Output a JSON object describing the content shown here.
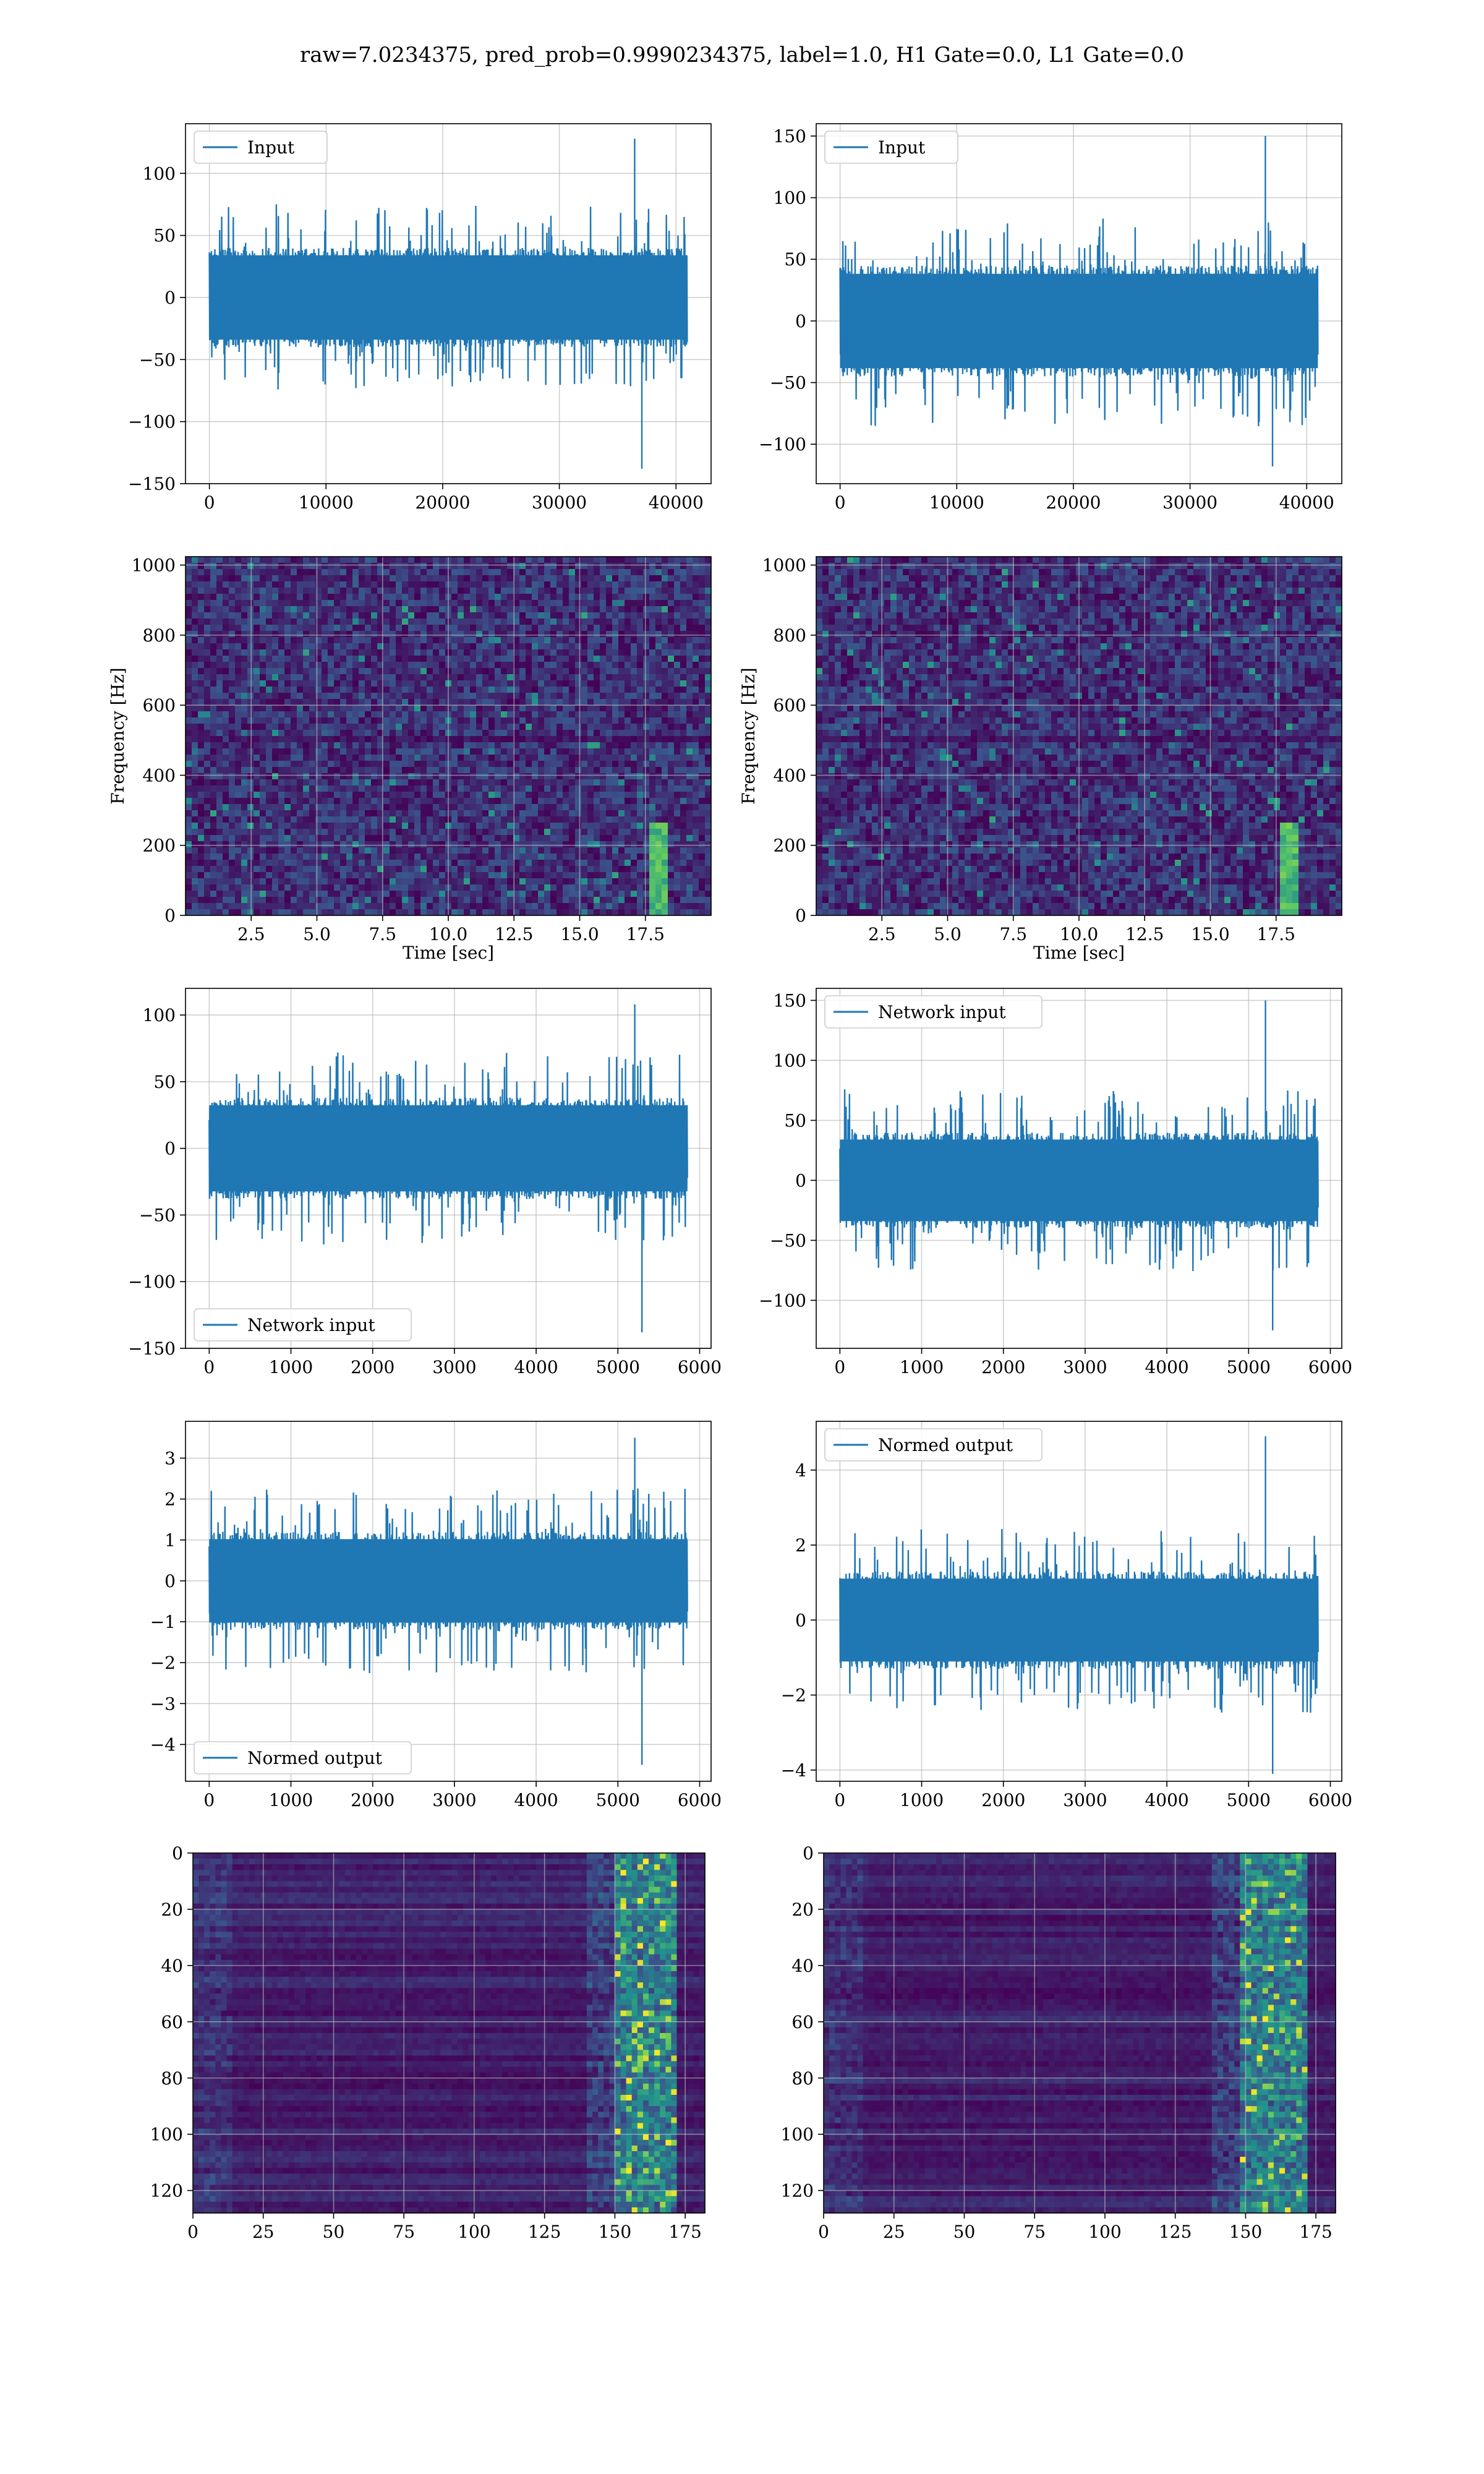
{
  "figure": {
    "title": "raw=7.0234375, pred_prob=0.9990234375, label=1.0, H1 Gate=0.0, L1 Gate=0.0"
  },
  "colors": {
    "line": "#1f77b4",
    "grid": "#b0b0b0",
    "viridis_low": "#440154",
    "viridis_mid": "#21918c",
    "viridis_high": "#fde725"
  },
  "chart_data": [
    {
      "id": "input-left",
      "type": "line",
      "legend": "Input",
      "legend_loc": "upper left",
      "x_range": [
        0,
        40960
      ],
      "xlim": [
        -2048,
        43008
      ],
      "ylim": [
        -150,
        140
      ],
      "xticks": [
        0,
        10000,
        20000,
        30000,
        40000
      ],
      "xtick_labels": [
        "0",
        "10000",
        "20000",
        "30000",
        "40000"
      ],
      "yticks": [
        -150,
        -100,
        -50,
        0,
        50,
        100
      ],
      "ytick_labels": [
        "−150",
        "−100",
        "−50",
        "0",
        "50",
        "100"
      ],
      "envelope": {
        "core": 40,
        "spike_max": 128,
        "spike_min": -138
      },
      "grid": true
    },
    {
      "id": "input-right",
      "type": "line",
      "legend": "Input",
      "legend_loc": "upper left",
      "x_range": [
        0,
        40960
      ],
      "xlim": [
        -2048,
        43008
      ],
      "ylim": [
        -132,
        160
      ],
      "xticks": [
        0,
        10000,
        20000,
        30000,
        40000
      ],
      "xtick_labels": [
        "0",
        "10000",
        "20000",
        "30000",
        "40000"
      ],
      "yticks": [
        -100,
        -50,
        0,
        50,
        100,
        150
      ],
      "ytick_labels": [
        "−100",
        "−50",
        "0",
        "50",
        "100",
        "150"
      ],
      "envelope": {
        "core": 45,
        "spike_max": 150,
        "spike_min": -118
      },
      "grid": true
    },
    {
      "id": "spectrogram-left",
      "type": "heatmap",
      "colormap": "viridis",
      "xlim": [
        0,
        20
      ],
      "ylim": [
        0,
        1024
      ],
      "xticks": [
        2.5,
        5.0,
        7.5,
        10.0,
        12.5,
        15.0,
        17.5
      ],
      "xtick_labels": [
        "2.5",
        "5.0",
        "7.5",
        "10.0",
        "12.5",
        "15.0",
        "17.5"
      ],
      "yticks": [
        0,
        200,
        400,
        600,
        800,
        1000
      ],
      "ytick_labels": [
        "0",
        "200",
        "400",
        "600",
        "800",
        "1000"
      ],
      "xlabel": "Time [sec]",
      "ylabel": "Frequency [Hz]",
      "chirp_time": 17.9,
      "grid": true
    },
    {
      "id": "spectrogram-right",
      "type": "heatmap",
      "colormap": "viridis",
      "xlim": [
        0,
        20
      ],
      "ylim": [
        0,
        1024
      ],
      "xticks": [
        2.5,
        5.0,
        7.5,
        10.0,
        12.5,
        15.0,
        17.5
      ],
      "xtick_labels": [
        "2.5",
        "5.0",
        "7.5",
        "10.0",
        "12.5",
        "15.0",
        "17.5"
      ],
      "yticks": [
        0,
        200,
        400,
        600,
        800,
        1000
      ],
      "ytick_labels": [
        "0",
        "200",
        "400",
        "600",
        "800",
        "1000"
      ],
      "xlabel": "Time [sec]",
      "ylabel": "Frequency [Hz]",
      "chirp_time": 18.0,
      "grid": true
    },
    {
      "id": "network-input-left",
      "type": "line",
      "legend": "Network input",
      "legend_loc": "lower left",
      "x_range": [
        0,
        5850
      ],
      "xlim": [
        -290,
        6140
      ],
      "ylim": [
        -150,
        120
      ],
      "xticks": [
        0,
        1000,
        2000,
        3000,
        4000,
        5000,
        6000
      ],
      "xtick_labels": [
        "0",
        "1000",
        "2000",
        "3000",
        "4000",
        "5000",
        "6000"
      ],
      "yticks": [
        -150,
        -100,
        -50,
        0,
        50,
        100
      ],
      "ytick_labels": [
        "−150",
        "−100",
        "−50",
        "0",
        "50",
        "100"
      ],
      "envelope": {
        "core": 38,
        "spike_max": 108,
        "spike_min": -138
      },
      "grid": true
    },
    {
      "id": "network-input-right",
      "type": "line",
      "legend": "Network input",
      "legend_loc": "upper left",
      "x_range": [
        0,
        5850
      ],
      "xlim": [
        -290,
        6140
      ],
      "ylim": [
        -140,
        160
      ],
      "xticks": [
        0,
        1000,
        2000,
        3000,
        4000,
        5000,
        6000
      ],
      "xtick_labels": [
        "0",
        "1000",
        "2000",
        "3000",
        "4000",
        "5000",
        "6000"
      ],
      "yticks": [
        -100,
        -50,
        0,
        50,
        100,
        150
      ],
      "ytick_labels": [
        "−100",
        "−50",
        "0",
        "50",
        "100",
        "150"
      ],
      "envelope": {
        "core": 40,
        "spike_max": 150,
        "spike_min": -125
      },
      "grid": true
    },
    {
      "id": "normed-output-left",
      "type": "line",
      "legend": "Normed output",
      "legend_loc": "lower left",
      "x_range": [
        0,
        5850
      ],
      "xlim": [
        -290,
        6140
      ],
      "ylim": [
        -4.9,
        3.9
      ],
      "xticks": [
        0,
        1000,
        2000,
        3000,
        4000,
        5000,
        6000
      ],
      "xtick_labels": [
        "0",
        "1000",
        "2000",
        "3000",
        "4000",
        "5000",
        "6000"
      ],
      "yticks": [
        -4,
        -3,
        -2,
        -1,
        0,
        1,
        2,
        3
      ],
      "ytick_labels": [
        "−4",
        "−3",
        "−2",
        "−1",
        "0",
        "1",
        "2",
        "3"
      ],
      "envelope": {
        "core": 1.2,
        "spike_max": 3.5,
        "spike_min": -4.5
      },
      "grid": true
    },
    {
      "id": "normed-output-right",
      "type": "line",
      "legend": "Normed output",
      "legend_loc": "upper left",
      "x_range": [
        0,
        5850
      ],
      "xlim": [
        -290,
        6140
      ],
      "ylim": [
        -4.3,
        5.3
      ],
      "xticks": [
        0,
        1000,
        2000,
        3000,
        4000,
        5000,
        6000
      ],
      "xtick_labels": [
        "0",
        "1000",
        "2000",
        "3000",
        "4000",
        "5000",
        "6000"
      ],
      "yticks": [
        -4,
        -2,
        0,
        2,
        4
      ],
      "ytick_labels": [
        "−4",
        "−2",
        "0",
        "2",
        "4"
      ],
      "envelope": {
        "core": 1.3,
        "spike_max": 4.9,
        "spike_min": -4.1
      },
      "grid": true
    },
    {
      "id": "feature-map-left",
      "type": "heatmap",
      "colormap": "viridis",
      "xlim": [
        0,
        182
      ],
      "ylim": [
        128,
        0
      ],
      "xticks": [
        0,
        25,
        50,
        75,
        100,
        125,
        150,
        175
      ],
      "xtick_labels": [
        "0",
        "25",
        "50",
        "75",
        "100",
        "125",
        "150",
        "175"
      ],
      "yticks": [
        0,
        20,
        40,
        60,
        80,
        100,
        120
      ],
      "ytick_labels": [
        "0",
        "20",
        "40",
        "60",
        "80",
        "100",
        "120"
      ],
      "hot_band": [
        150,
        172
      ],
      "grid": true
    },
    {
      "id": "feature-map-right",
      "type": "heatmap",
      "colormap": "viridis",
      "xlim": [
        0,
        182
      ],
      "ylim": [
        128,
        0
      ],
      "xticks": [
        0,
        25,
        50,
        75,
        100,
        125,
        150,
        175
      ],
      "xtick_labels": [
        "0",
        "25",
        "50",
        "75",
        "100",
        "125",
        "150",
        "175"
      ],
      "yticks": [
        0,
        20,
        40,
        60,
        80,
        100,
        120
      ],
      "ytick_labels": [
        "0",
        "20",
        "40",
        "60",
        "80",
        "100",
        "120"
      ],
      "hot_band": [
        148,
        172
      ],
      "grid": true
    }
  ]
}
